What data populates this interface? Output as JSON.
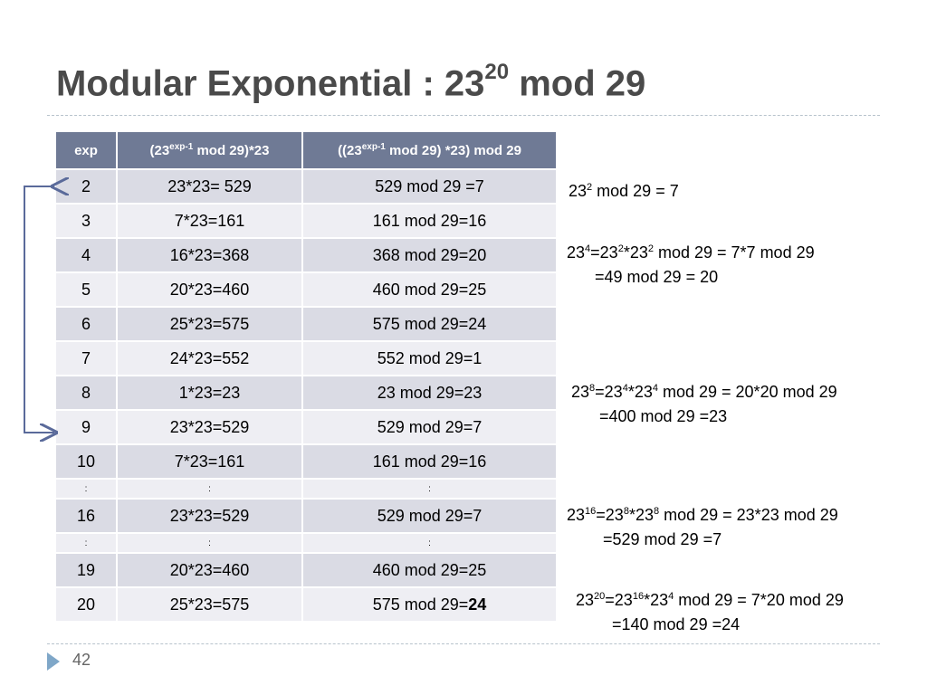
{
  "title": {
    "text": "Modular Exponential : 23",
    "sup": "20",
    "tail": " mod 29"
  },
  "table": {
    "headers": [
      {
        "pre": "exp",
        "sup": "",
        "post": ""
      },
      {
        "pre": "(23",
        "sup": "exp-1",
        "post": " mod 29)*23"
      },
      {
        "pre": "((23",
        "sup": "exp-1",
        "post": " mod 29) *23)  mod 29"
      }
    ],
    "rows": [
      {
        "exp": "2",
        "product": "23*23= 529",
        "mod": "529 mod 29 =7",
        "mod_bold": ""
      },
      {
        "exp": "3",
        "product": "7*23=161",
        "mod": "161 mod 29=16",
        "mod_bold": ""
      },
      {
        "exp": "4",
        "product": "16*23=368",
        "mod": "368 mod 29=20",
        "mod_bold": ""
      },
      {
        "exp": "5",
        "product": "20*23=460",
        "mod": "460 mod 29=25",
        "mod_bold": ""
      },
      {
        "exp": "6",
        "product": "25*23=575",
        "mod": "575 mod 29=24",
        "mod_bold": ""
      },
      {
        "exp": "7",
        "product": "24*23=552",
        "mod": "552 mod 29=1",
        "mod_bold": ""
      },
      {
        "exp": "8",
        "product": "1*23=23",
        "mod": "23 mod 29=23",
        "mod_bold": ""
      },
      {
        "exp": "9",
        "product": "23*23=529",
        "mod": "529 mod 29=7",
        "mod_bold": ""
      },
      {
        "exp": "10",
        "product": "7*23=161",
        "mod": "161 mod 29=16",
        "mod_bold": ""
      },
      {
        "exp": ":",
        "product": ":",
        "mod": ":",
        "mod_bold": ""
      },
      {
        "exp": "16",
        "product": "23*23=529",
        "mod": "529 mod 29=7",
        "mod_bold": ""
      },
      {
        "exp": ":",
        "product": ":",
        "mod": ":",
        "mod_bold": ""
      },
      {
        "exp": "19",
        "product": "20*23=460",
        "mod": "460 mod 29=25",
        "mod_bold": ""
      },
      {
        "exp": "20",
        "product": "25*23=575",
        "mod": "575 mod 29=",
        "mod_bold": "24"
      }
    ]
  },
  "notes": {
    "n1": {
      "a": "23",
      "b": "2",
      "c": " mod 29 = 7"
    },
    "n2": {
      "a": "23",
      "b": "4",
      "c": "=23",
      "d": "2",
      "e": "*23",
      "f": "2",
      "g": " mod 29 = 7*7 mod 29",
      "line2": "=49 mod 29 = 20"
    },
    "n3": {
      "a": "23",
      "b": "8",
      "c": "=23",
      "d": "4",
      "e": "*23",
      "f": "4",
      "g": " mod 29 =  20*20 mod 29",
      "line2": "=400 mod 29 =23"
    },
    "n4": {
      "a": "23",
      "b": "16",
      "c": "=23",
      "d": "8",
      "e": "*23",
      "f": "8",
      "g": " mod 29 = 23*23 mod 29",
      "line2": "=529 mod 29 =7"
    },
    "n5": {
      "a": "23",
      "b": "20",
      "c": "=23",
      "d": "16",
      "e": "*23",
      "f": "4",
      "g": " mod 29 = 7*20 mod 29",
      "line2": "=140 mod 29 =24"
    }
  },
  "footer": {
    "page_number": "42"
  },
  "colors": {
    "header_bg": "#6f7a95",
    "row_dark": "#dadbe4",
    "row_light": "#eeeef3",
    "arrow": "#5a6a9a",
    "accent": "#7fa7c8"
  }
}
